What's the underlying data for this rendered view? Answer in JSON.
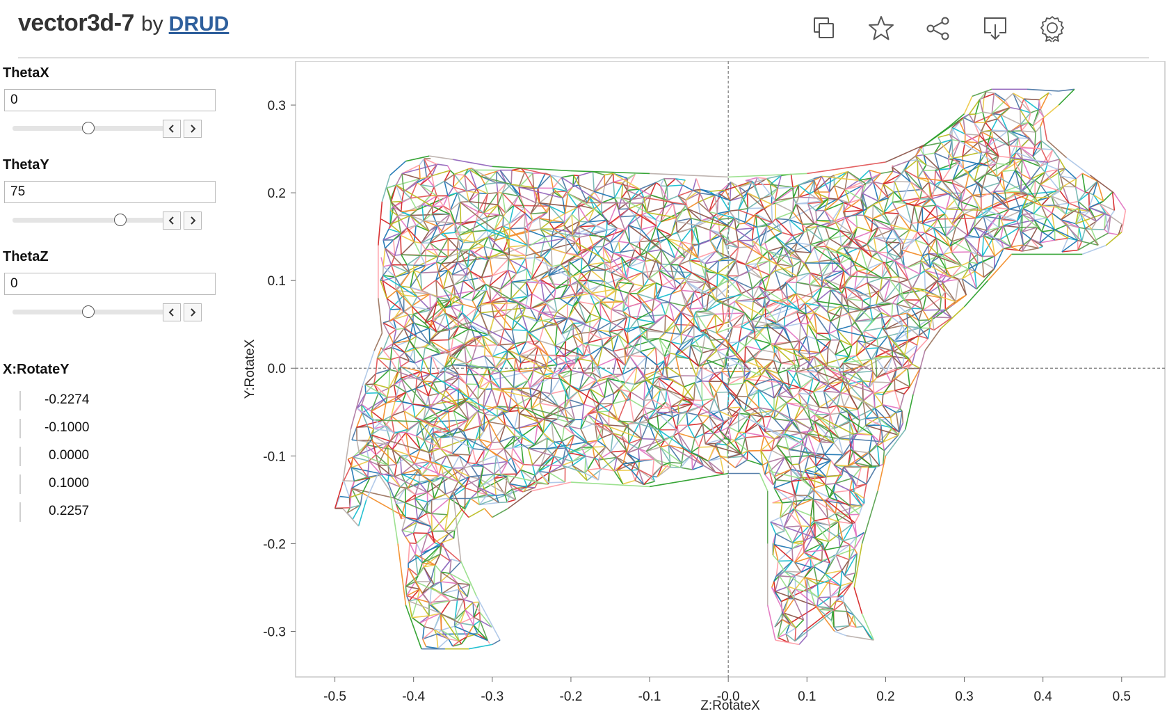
{
  "header": {
    "viz_name": "vector3d-7",
    "by_text": "by",
    "author": "DRUD",
    "toolbar": [
      {
        "name": "duplicate-icon"
      },
      {
        "name": "favorite-star-icon"
      },
      {
        "name": "share-icon"
      },
      {
        "name": "download-icon"
      },
      {
        "name": "badge-icon"
      }
    ]
  },
  "parameters": [
    {
      "title": "ThetaX",
      "value": "0",
      "slider_fraction": 0.5
    },
    {
      "title": "ThetaY",
      "value": "75",
      "slider_fraction": 0.71
    },
    {
      "title": "ThetaZ",
      "value": "0",
      "slider_fraction": 0.5
    }
  ],
  "legend": {
    "title": "X:RotateY",
    "items": [
      "-0.2274",
      "-0.1000",
      "0.0000",
      "0.1000",
      "0.2257"
    ]
  },
  "chart_data": {
    "type": "line",
    "xlabel": "Z:RotateX",
    "ylabel": "Y:RotateX",
    "xlim": [
      -0.55,
      0.555
    ],
    "ylim": [
      -0.352,
      0.35
    ],
    "xticks": [
      "-0.5",
      "-0.4",
      "-0.3",
      "-0.2",
      "-0.1",
      "-0.0",
      "0.1",
      "0.2",
      "0.3",
      "0.4",
      "0.5"
    ],
    "xtick_values": [
      -0.5,
      -0.4,
      -0.3,
      -0.2,
      -0.1,
      0.0,
      0.1,
      0.2,
      0.3,
      0.4,
      0.5
    ],
    "yticks": [
      "0.3",
      "0.2",
      "0.1",
      "0.0",
      "-0.1",
      "-0.2",
      "-0.3"
    ],
    "ytick_values": [
      0.3,
      0.2,
      0.1,
      0.0,
      -0.1,
      -0.2,
      -0.3
    ],
    "reference_lines": {
      "x": 0.0,
      "y": 0.0
    },
    "grid": false,
    "outline": [
      [
        -0.5,
        -0.16
      ],
      [
        -0.49,
        -0.13
      ],
      [
        -0.48,
        -0.07
      ],
      [
        -0.465,
        -0.02
      ],
      [
        -0.45,
        0.02
      ],
      [
        -0.44,
        0.04
      ],
      [
        -0.445,
        0.08
      ],
      [
        -0.445,
        0.14
      ],
      [
        -0.44,
        0.19
      ],
      [
        -0.43,
        0.22
      ],
      [
        -0.41,
        0.236
      ],
      [
        -0.38,
        0.242
      ],
      [
        -0.35,
        0.238
      ],
      [
        -0.3,
        0.23
      ],
      [
        -0.2,
        0.225
      ],
      [
        -0.1,
        0.222
      ],
      [
        0.0,
        0.218
      ],
      [
        0.1,
        0.222
      ],
      [
        0.2,
        0.235
      ],
      [
        0.25,
        0.255
      ],
      [
        0.28,
        0.275
      ],
      [
        0.3,
        0.29
      ],
      [
        0.31,
        0.31
      ],
      [
        0.335,
        0.318
      ],
      [
        0.38,
        0.318
      ],
      [
        0.42,
        0.316
      ],
      [
        0.44,
        0.318
      ],
      [
        0.42,
        0.3
      ],
      [
        0.4,
        0.285
      ],
      [
        0.405,
        0.26
      ],
      [
        0.43,
        0.24
      ],
      [
        0.46,
        0.22
      ],
      [
        0.49,
        0.2
      ],
      [
        0.505,
        0.18
      ],
      [
        0.5,
        0.155
      ],
      [
        0.48,
        0.14
      ],
      [
        0.45,
        0.13
      ],
      [
        0.41,
        0.13
      ],
      [
        0.36,
        0.13
      ],
      [
        0.33,
        0.1
      ],
      [
        0.3,
        0.07
      ],
      [
        0.27,
        0.045
      ],
      [
        0.25,
        0.02
      ],
      [
        0.235,
        -0.03
      ],
      [
        0.225,
        -0.07
      ],
      [
        0.2,
        -0.1
      ],
      [
        0.19,
        -0.14
      ],
      [
        0.17,
        -0.2
      ],
      [
        0.16,
        -0.25
      ],
      [
        0.17,
        -0.28
      ],
      [
        0.185,
        -0.31
      ],
      [
        0.15,
        -0.305
      ],
      [
        0.135,
        -0.3
      ],
      [
        0.11,
        -0.27
      ],
      [
        0.1,
        -0.24
      ],
      [
        0.1,
        -0.305
      ],
      [
        0.09,
        -0.315
      ],
      [
        0.06,
        -0.31
      ],
      [
        0.05,
        -0.27
      ],
      [
        0.05,
        -0.2
      ],
      [
        0.05,
        -0.14
      ],
      [
        0.04,
        -0.12
      ],
      [
        0.0,
        -0.12
      ],
      [
        -0.1,
        -0.135
      ],
      [
        -0.2,
        -0.13
      ],
      [
        -0.25,
        -0.14
      ],
      [
        -0.28,
        -0.16
      ],
      [
        -0.3,
        -0.17
      ],
      [
        -0.31,
        -0.16
      ],
      [
        -0.33,
        -0.17
      ],
      [
        -0.34,
        -0.16
      ],
      [
        -0.35,
        -0.14
      ],
      [
        -0.34,
        -0.22
      ],
      [
        -0.32,
        -0.26
      ],
      [
        -0.29,
        -0.31
      ],
      [
        -0.3,
        -0.315
      ],
      [
        -0.33,
        -0.32
      ],
      [
        -0.36,
        -0.32
      ],
      [
        -0.39,
        -0.32
      ],
      [
        -0.41,
        -0.27
      ],
      [
        -0.42,
        -0.2
      ],
      [
        -0.43,
        -0.14
      ],
      [
        -0.445,
        -0.12
      ],
      [
        -0.46,
        -0.15
      ],
      [
        -0.47,
        -0.18
      ],
      [
        -0.49,
        -0.16
      ]
    ]
  }
}
